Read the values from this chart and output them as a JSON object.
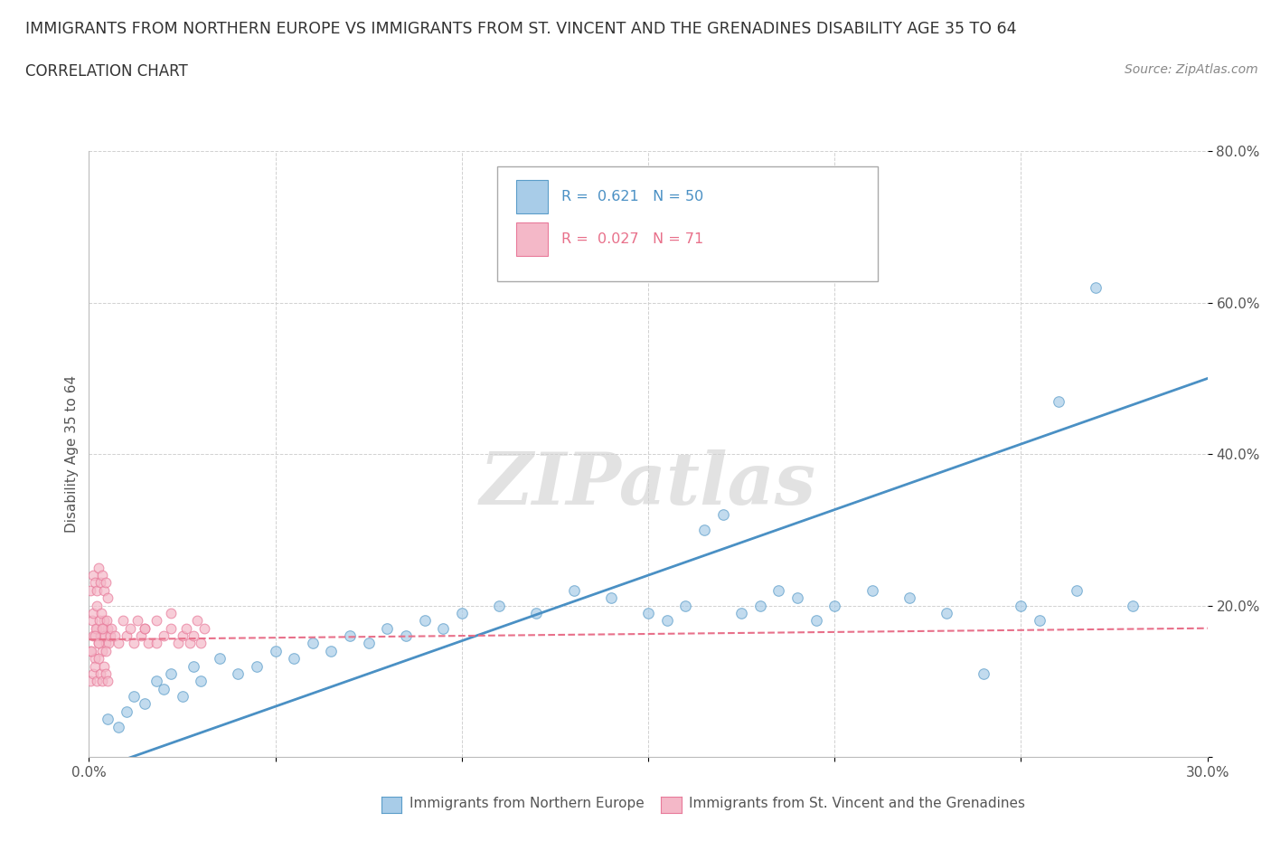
{
  "title": "IMMIGRANTS FROM NORTHERN EUROPE VS IMMIGRANTS FROM ST. VINCENT AND THE GRENADINES DISABILITY AGE 35 TO 64",
  "subtitle": "CORRELATION CHART",
  "source": "Source: ZipAtlas.com",
  "ylabel": "Disability Age 35 to 64",
  "xlim": [
    0.0,
    0.3
  ],
  "ylim": [
    0.0,
    0.8
  ],
  "xticks": [
    0.0,
    0.05,
    0.1,
    0.15,
    0.2,
    0.25,
    0.3
  ],
  "xticklabels": [
    "0.0%",
    "",
    "",
    "",
    "",
    "",
    "30.0%"
  ],
  "yticks": [
    0.0,
    0.2,
    0.4,
    0.6,
    0.8
  ],
  "yticklabels": [
    "",
    "20.0%",
    "40.0%",
    "60.0%",
    "80.0%"
  ],
  "blue_R": 0.621,
  "blue_N": 50,
  "pink_R": 0.027,
  "pink_N": 71,
  "blue_color": "#a8cce8",
  "pink_color": "#f4b8c8",
  "blue_edge_color": "#5b9dc9",
  "pink_edge_color": "#e87a9a",
  "blue_line_color": "#4a90c4",
  "pink_line_color": "#e8708a",
  "legend_label_blue": "Immigrants from Northern Europe",
  "legend_label_pink": "Immigrants from St. Vincent and the Grenadines",
  "watermark": "ZIPatlas",
  "blue_scatter_x": [
    0.005,
    0.008,
    0.01,
    0.012,
    0.015,
    0.018,
    0.02,
    0.022,
    0.025,
    0.028,
    0.03,
    0.035,
    0.04,
    0.045,
    0.05,
    0.055,
    0.06,
    0.065,
    0.07,
    0.075,
    0.08,
    0.085,
    0.09,
    0.095,
    0.1,
    0.11,
    0.12,
    0.13,
    0.14,
    0.15,
    0.155,
    0.16,
    0.165,
    0.17,
    0.175,
    0.18,
    0.185,
    0.19,
    0.195,
    0.2,
    0.21,
    0.22,
    0.23,
    0.24,
    0.25,
    0.255,
    0.26,
    0.265,
    0.27,
    0.28
  ],
  "blue_scatter_y": [
    0.05,
    0.04,
    0.06,
    0.08,
    0.07,
    0.1,
    0.09,
    0.11,
    0.08,
    0.12,
    0.1,
    0.13,
    0.11,
    0.12,
    0.14,
    0.13,
    0.15,
    0.14,
    0.16,
    0.15,
    0.17,
    0.16,
    0.18,
    0.17,
    0.19,
    0.2,
    0.19,
    0.22,
    0.21,
    0.19,
    0.18,
    0.2,
    0.3,
    0.32,
    0.19,
    0.2,
    0.22,
    0.21,
    0.18,
    0.2,
    0.22,
    0.21,
    0.19,
    0.11,
    0.2,
    0.18,
    0.47,
    0.22,
    0.62,
    0.2
  ],
  "pink_scatter_x": [
    0.0005,
    0.001,
    0.0015,
    0.002,
    0.0025,
    0.003,
    0.0035,
    0.004,
    0.0045,
    0.005,
    0.0005,
    0.001,
    0.0015,
    0.002,
    0.0025,
    0.003,
    0.0035,
    0.004,
    0.0045,
    0.005,
    0.0005,
    0.001,
    0.0015,
    0.002,
    0.0025,
    0.003,
    0.0035,
    0.004,
    0.0045,
    0.005,
    0.0008,
    0.0012,
    0.0018,
    0.0022,
    0.0028,
    0.0032,
    0.0038,
    0.0042,
    0.0048,
    0.0052,
    0.0006,
    0.0016,
    0.0026,
    0.0036,
    0.0046,
    0.0056,
    0.006,
    0.007,
    0.008,
    0.009,
    0.01,
    0.011,
    0.012,
    0.013,
    0.014,
    0.015,
    0.016,
    0.018,
    0.02,
    0.022,
    0.024,
    0.025,
    0.026,
    0.027,
    0.028,
    0.029,
    0.03,
    0.031,
    0.022,
    0.018,
    0.015
  ],
  "pink_scatter_y": [
    0.14,
    0.16,
    0.13,
    0.17,
    0.15,
    0.16,
    0.14,
    0.18,
    0.15,
    0.17,
    0.1,
    0.11,
    0.12,
    0.1,
    0.13,
    0.11,
    0.1,
    0.12,
    0.11,
    0.1,
    0.22,
    0.24,
    0.23,
    0.22,
    0.25,
    0.23,
    0.24,
    0.22,
    0.23,
    0.21,
    0.18,
    0.19,
    0.17,
    0.2,
    0.18,
    0.19,
    0.17,
    0.16,
    0.18,
    0.15,
    0.14,
    0.16,
    0.15,
    0.17,
    0.14,
    0.16,
    0.17,
    0.16,
    0.15,
    0.18,
    0.16,
    0.17,
    0.15,
    0.18,
    0.16,
    0.17,
    0.15,
    0.18,
    0.16,
    0.17,
    0.15,
    0.16,
    0.17,
    0.15,
    0.16,
    0.18,
    0.15,
    0.17,
    0.19,
    0.15,
    0.17
  ],
  "blue_line_x": [
    0.0,
    0.3
  ],
  "blue_line_y": [
    -0.02,
    0.5
  ],
  "pink_line_x": [
    0.0,
    0.3
  ],
  "pink_line_y": [
    0.155,
    0.17
  ]
}
